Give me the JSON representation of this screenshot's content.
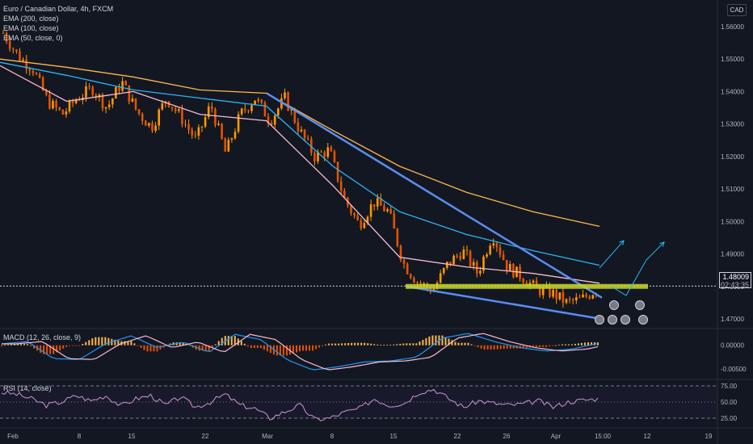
{
  "header": {
    "symbol_line": "Euro / Canadian Dollar, 4h, FXCM",
    "indicators": [
      "EMA (200, close)",
      "EMA (100, close)",
      "EMA (50, close, 0)"
    ],
    "currency": "CAD"
  },
  "price_badge": {
    "price": "1.48009",
    "countdown": "02:43:35"
  },
  "macd_label": "MACD (12, 26, close, 9)",
  "rsi_label": "RSI (14, close)",
  "colors": {
    "background": "#131722",
    "candle_up": "#ff9800",
    "candle_down": "#ff9800",
    "ema200": "#ffb74d",
    "ema100": "#29b6f6",
    "ema50": "#f8bbd0",
    "trendline": "#5b8def",
    "support_zone": "#c8d72a",
    "macd_line": "#2196f3",
    "signal_line": "#f8bbd0",
    "hist_pos": "#ffb74d",
    "hist_neg": "#e65100",
    "rsi_line": "#ce93d8"
  },
  "chart_data": [
    {
      "type": "line",
      "title": "Euro / Canadian Dollar, 4h, FXCM",
      "x_ticks": [
        "Feb",
        "8",
        "15",
        "22",
        "Mar",
        "8",
        "15",
        "22",
        "26",
        "Apr",
        "15:00",
        "12",
        "19"
      ],
      "y_ticks": [
        "1.56000",
        "1.55000",
        "1.54000",
        "1.53000",
        "1.52000",
        "1.51000",
        "1.50000",
        "1.49000",
        "1.48000",
        "1.47000"
      ],
      "ylim": [
        1.465,
        1.565
      ],
      "current_price": 1.48009,
      "price_path": [
        1.558,
        1.551,
        1.547,
        1.537,
        1.533,
        1.538,
        1.541,
        1.535,
        1.543,
        1.534,
        1.529,
        1.538,
        1.532,
        1.525,
        1.536,
        1.521,
        1.533,
        1.538,
        1.531,
        1.538,
        1.528,
        1.52,
        1.522,
        1.507,
        1.499,
        1.506,
        1.503,
        1.487,
        1.481,
        1.479,
        1.487,
        1.491,
        1.484,
        1.496,
        1.486,
        1.483,
        1.479,
        1.478,
        1.475,
        1.476,
        1.479
      ],
      "series": [
        {
          "name": "EMA (200, close)",
          "values": [
            1.55,
            1.5475,
            1.5445,
            1.5405,
            1.5395,
            1.528,
            1.517,
            1.509,
            1.503,
            1.4985
          ]
        },
        {
          "name": "EMA (100, close)",
          "values": [
            1.549,
            1.545,
            1.5405,
            1.538,
            1.5355,
            1.517,
            1.503,
            1.496,
            1.491,
            1.4865
          ]
        },
        {
          "name": "EMA (50, close, 0)",
          "values": [
            1.548,
            1.537,
            1.54,
            1.533,
            1.531,
            1.511,
            1.489,
            1.486,
            1.484,
            1.481
          ]
        }
      ],
      "trendline_upper": [
        1.5395,
        1.4765
      ],
      "trendline_lower": [
        1.48,
        1.47
      ],
      "support_level": 1.48
    },
    {
      "type": "line",
      "title": "MACD (12, 26, close, 9)",
      "y_ticks": [
        "0.00000",
        "-0.00500"
      ],
      "macd_values": [
        0.0003,
        0.0008,
        -0.0028,
        -0.003,
        0.0003,
        0.002,
        -0.0005,
        0.0007,
        -0.0015,
        0.0023,
        0.0012,
        -0.003,
        -0.0052,
        -0.0045,
        -0.0035,
        -0.0033,
        -0.0025,
        0.0015,
        0.0025,
        0.0008,
        -0.0005,
        -0.0012,
        -0.0008,
        0.0004
      ]
    },
    {
      "type": "line",
      "title": "RSI (14, close)",
      "y_ticks": [
        "75.00",
        "50.00",
        "25.00"
      ],
      "ylim": [
        10,
        85
      ],
      "rsi_values": [
        65,
        62,
        55,
        45,
        50,
        60,
        52,
        60,
        44,
        55,
        60,
        45,
        58,
        42,
        50,
        62,
        45,
        40,
        25,
        35,
        45,
        23,
        25,
        34,
        40,
        55,
        45,
        48,
        65,
        70,
        55,
        42,
        52,
        48,
        45,
        47,
        52,
        42,
        50,
        53,
        55
      ]
    }
  ]
}
